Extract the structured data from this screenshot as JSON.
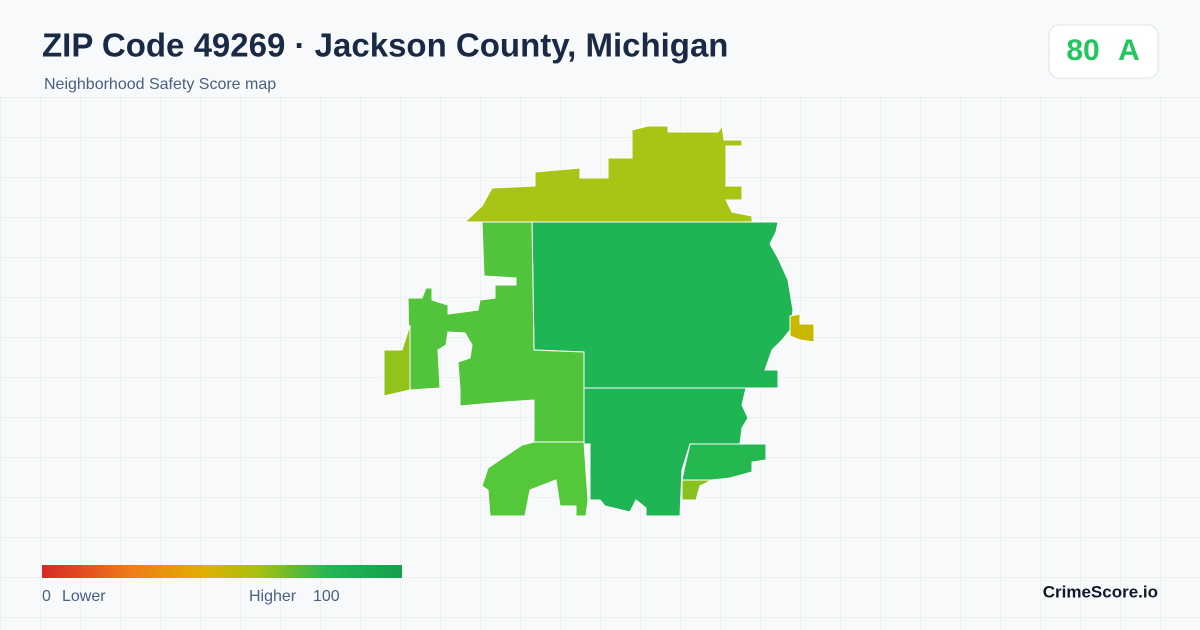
{
  "header": {
    "title": "ZIP Code 49269 · Jackson County, Michigan",
    "subtitle": "Neighborhood Safety Score map"
  },
  "badge": {
    "score": "80",
    "grade": "A"
  },
  "legend": {
    "min": "0",
    "min_label": "Lower",
    "max_label": "Higher",
    "max": "100"
  },
  "footer": {
    "brand": "CrimeScore.io"
  }
}
